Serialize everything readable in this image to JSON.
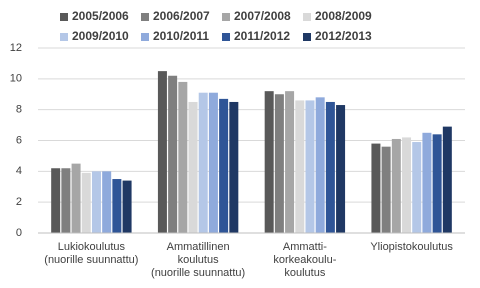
{
  "chart_data": {
    "type": "bar",
    "categories": [
      "Lukiokoulutus\n(nuorille suunnattu)",
      "Ammatillinen\nkoulutus\n(nuorille suunnattu)",
      "Ammatti-\nkorkeakoulu-\nkoulutus",
      "Yliopistokoulutus"
    ],
    "series": [
      {
        "name": "2005/2006",
        "color": "#595959",
        "values": [
          4.2,
          10.5,
          9.2,
          5.8
        ]
      },
      {
        "name": "2006/2007",
        "color": "#7f7f7f",
        "values": [
          4.2,
          10.2,
          9.0,
          5.6
        ]
      },
      {
        "name": "2007/2008",
        "color": "#a6a6a6",
        "values": [
          4.5,
          9.8,
          9.2,
          6.1
        ]
      },
      {
        "name": "2008/2009",
        "color": "#d9d9d9",
        "values": [
          3.9,
          8.5,
          8.6,
          6.2
        ]
      },
      {
        "name": "2009/2010",
        "color": "#b4c7e7",
        "values": [
          4.0,
          9.1,
          8.6,
          5.9
        ]
      },
      {
        "name": "2010/2011",
        "color": "#8faadc",
        "values": [
          4.0,
          9.1,
          8.8,
          6.5
        ]
      },
      {
        "name": "2011/2012",
        "color": "#2f5597",
        "values": [
          3.5,
          8.7,
          8.5,
          6.4
        ]
      },
      {
        "name": "2012/2013",
        "color": "#1f3864",
        "values": [
          3.4,
          8.5,
          8.3,
          6.9
        ]
      }
    ],
    "ylim": [
      0,
      12
    ],
    "yticks": [
      0,
      2,
      4,
      6,
      8,
      10,
      12
    ],
    "grid": true,
    "legend": "top"
  }
}
